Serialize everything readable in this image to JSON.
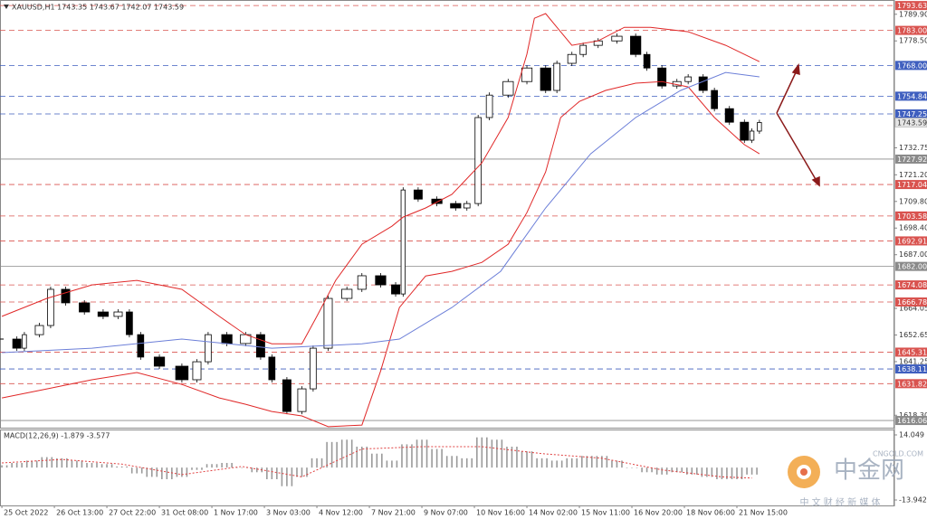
{
  "chart_data": [
    {
      "type": "candlestick",
      "title": "XAUUSD,H1 1743.35 1743.67 1742.07 1743.59",
      "xlim": [
        -0.5,
        238
      ],
      "xticks": [
        {
          "value": 0,
          "label": "25 Oct 2022"
        },
        {
          "value": 14,
          "label": "26 Oct 13:00"
        },
        {
          "value": 28,
          "label": "27 Oct 22:00"
        },
        {
          "value": 42,
          "label": "31 Oct 08:00"
        },
        {
          "value": 56,
          "label": "1 Nov 17:00"
        },
        {
          "value": 70,
          "label": "3 Nov 03:00"
        },
        {
          "value": 84,
          "label": "4 Nov 12:00"
        },
        {
          "value": 98,
          "label": "7 Nov 21:00"
        },
        {
          "value": 112,
          "label": "9 Nov 07:00"
        },
        {
          "value": 126,
          "label": "10 Nov 16:00"
        },
        {
          "value": 140,
          "label": "14 Nov 02:00"
        },
        {
          "value": 154,
          "label": "15 Nov 11:00"
        },
        {
          "value": 168,
          "label": "16 Nov 20:00"
        },
        {
          "value": 182,
          "label": "18 Nov 06:00"
        },
        {
          "value": 196,
          "label": "21 Nov 15:00"
        }
      ],
      "ylim": [
        1612.6,
        1796
      ],
      "yticks": [
        {
          "value": 1789.9,
          "label": "1789.90"
        },
        {
          "value": 1778.5,
          "label": "1778.50"
        },
        1732.75,
        {
          "value": 1721.2,
          "label": "1721.20"
        },
        {
          "value": 1709.8,
          "label": "1709.80"
        },
        {
          "value": 1698.4,
          "label": "1698.40"
        },
        {
          "value": 1687,
          "label": "1687.00"
        },
        1664.05,
        1652.65,
        1641.25,
        {
          "value": 1618.3,
          "label": "1618.30"
        }
      ],
      "levels": [
        {
          "value": 1793.63,
          "color": "#d9534f",
          "dashed": true
        },
        {
          "value": 1783,
          "label": "1783.00",
          "color": "#d9534f",
          "dashed": true
        },
        {
          "value": 1768,
          "label": "1768.00",
          "color": "#3f5fbf",
          "dashed": true
        },
        {
          "value": 1754.84,
          "color": "#3f5fbf",
          "dashed": true
        },
        {
          "value": 1747.25,
          "color": "#3f5fbf",
          "dashed": true
        },
        {
          "value": 1727.92,
          "color": "#8a8a8a",
          "dashed": false
        },
        {
          "value": 1717.04,
          "color": "#d9534f",
          "dashed": true
        },
        {
          "value": 1703.58,
          "color": "#d9534f",
          "dashed": true
        },
        {
          "value": 1692.91,
          "color": "#d9534f",
          "dashed": true
        },
        {
          "value": 1682,
          "label": "1682.00",
          "color": "#8a8a8a",
          "dashed": false
        },
        {
          "value": 1674.08,
          "color": "#d9534f",
          "dashed": true
        },
        {
          "value": 1666.78,
          "color": "#d9534f",
          "dashed": true
        },
        {
          "value": 1645.31,
          "color": "#d9534f",
          "dashed": true
        },
        {
          "value": 1638.11,
          "color": "#3f5fbf",
          "dashed": true
        },
        {
          "value": 1631.82,
          "color": "#d9534f",
          "dashed": true
        },
        {
          "value": 1616.06,
          "color": "#8a8a8a",
          "dashed": false
        }
      ],
      "last_price": 1743.59,
      "series": [
        {
          "kind": "candles",
          "color": "#000000",
          "x": [
            0,
            4,
            6,
            10,
            13,
            17,
            22,
            27,
            31,
            34,
            37,
            42,
            48,
            52,
            55,
            60,
            65,
            69,
            72,
            76,
            80,
            83,
            87,
            92,
            96,
            101,
            105,
            107,
            111,
            116,
            121,
            124,
            127,
            130,
            135,
            140,
            145,
            148,
            152,
            155,
            159,
            164,
            169,
            172,
            176,
            180,
            183,
            187,
            190,
            194,
            198,
            200,
            202
          ],
          "values": [
            1650.9,
            1647,
            1652.8,
            1656.7,
            1672.2,
            1666.4,
            1662.5,
            1660.6,
            1662.5,
            1652.8,
            1643.2,
            1639.3,
            1633.5,
            1641.2,
            1652.8,
            1649,
            1652.8,
            1643.2,
            1633.5,
            1619.9,
            1629.6,
            1647,
            1668.3,
            1672.2,
            1678,
            1674.1,
            1670.2,
            1714.7,
            1710.8,
            1708.9,
            1707,
            1708.9,
            1745.7,
            1755.3,
            1761.1,
            1766.9,
            1757.3,
            1768.9,
            1772.7,
            1776.6,
            1778.5,
            1780.5,
            1772.7,
            1766.9,
            1759.2,
            1761.1,
            1763.1,
            1757.3,
            1749.5,
            1743.7,
            1736,
            1739.9,
            1743.59
          ]
        },
        {
          "kind": "line",
          "color": "#e02828",
          "x": [
            0,
            12,
            24,
            36,
            48,
            58,
            65,
            72,
            80,
            84,
            89,
            96,
            104,
            107,
            113,
            120,
            128,
            135,
            140,
            142,
            145,
            148,
            152,
            159,
            166,
            173,
            183,
            193,
            202
          ],
          "values": [
            1660.6,
            1668.3,
            1674.1,
            1676,
            1672.2,
            1660.6,
            1652.8,
            1648.9,
            1648.9,
            1660.6,
            1676,
            1691.5,
            1699.2,
            1703.1,
            1707,
            1712.8,
            1726.3,
            1745.7,
            1772.8,
            1788.2,
            1790.2,
            1784.3,
            1776.6,
            1778.5,
            1784.3,
            1784.3,
            1782.4,
            1776.6,
            1769.6
          ]
        },
        {
          "kind": "line",
          "color": "#e02828",
          "x": [
            0,
            12,
            24,
            36,
            48,
            58,
            65,
            72,
            80,
            87,
            96,
            101,
            106,
            113,
            120,
            128,
            135,
            140,
            145,
            149,
            154,
            161,
            169,
            176,
            183,
            190,
            198,
            202
          ],
          "values": [
            1625.7,
            1629.6,
            1633.5,
            1636.6,
            1631.5,
            1625.7,
            1623,
            1619.9,
            1618,
            1613.4,
            1614.1,
            1637.3,
            1664.4,
            1677.9,
            1679.9,
            1683.7,
            1691.5,
            1705,
            1722.4,
            1745.7,
            1752.6,
            1757.3,
            1760.4,
            1761.1,
            1758.8,
            1745.7,
            1734.1,
            1730.2
          ]
        },
        {
          "kind": "line",
          "color": "#6c7fd8",
          "x": [
            0,
            24,
            48,
            72,
            96,
            106,
            120,
            133,
            145,
            157,
            169,
            181,
            193,
            202
          ],
          "values": [
            1645.1,
            1647,
            1650.9,
            1647,
            1648.9,
            1650.9,
            1664.4,
            1679.9,
            1707,
            1730.2,
            1745.7,
            1757.3,
            1765,
            1763.1
          ]
        }
      ]
    },
    {
      "type": "macd",
      "title": "MACD(12,26,9) -1.879 -3.577",
      "ylim": [
        -13.942,
        14.049
      ],
      "yticks": [
        14.049,
        -13.942
      ],
      "series": [
        {
          "kind": "histogram",
          "color": "#9a9a9a",
          "x": [
            0,
            4,
            8,
            12,
            16,
            20,
            24,
            28,
            32,
            36,
            40,
            44,
            48,
            52,
            56,
            60,
            64,
            68,
            72,
            76,
            80,
            84,
            88,
            92,
            96,
            100,
            104,
            108,
            112,
            116,
            120,
            124,
            128,
            132,
            136,
            140,
            144,
            148,
            152,
            156,
            160,
            164,
            168,
            172,
            176,
            180,
            184,
            188,
            192,
            196,
            200
          ],
          "values": [
            1,
            2,
            3,
            4.5,
            4,
            3,
            2,
            1.5,
            0.5,
            -2.5,
            -4,
            -5,
            -4,
            -1,
            1.5,
            2,
            0,
            -2,
            -5,
            -8,
            -4,
            4,
            11,
            12,
            9,
            6,
            3,
            10,
            12,
            8,
            5,
            4,
            13,
            12,
            9,
            7,
            4,
            3,
            4,
            5,
            5,
            3,
            0,
            -2,
            -3,
            -2,
            -3,
            -4,
            -5,
            -5,
            -3
          ]
        },
        {
          "kind": "signal",
          "color": "#e04040",
          "x": [
            0,
            16,
            32,
            48,
            64,
            80,
            96,
            112,
            128,
            144,
            160,
            176,
            192,
            200
          ],
          "values": [
            2,
            3.5,
            1.5,
            -3,
            0.5,
            -4,
            8,
            9,
            9,
            6,
            4,
            -1,
            -4,
            -4.5
          ]
        }
      ]
    }
  ],
  "watermark": {
    "brand": "中金网",
    "site": "CNGOLD.COM",
    "slogan": "中 文 财 经 新 媒 体"
  }
}
